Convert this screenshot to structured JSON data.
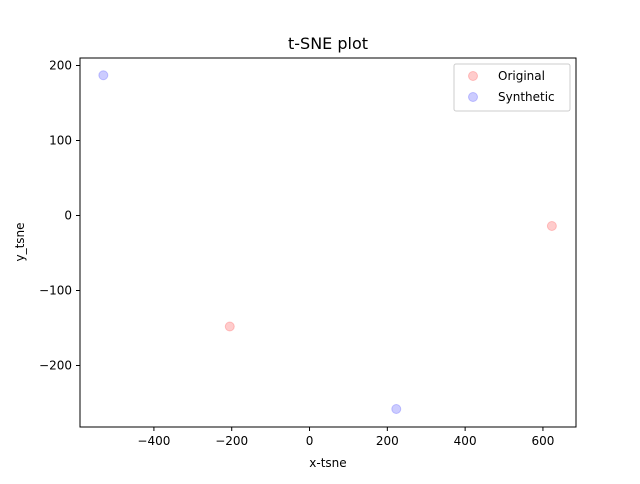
{
  "chart_data": {
    "type": "scatter",
    "title": "t-SNE plot",
    "xlabel": "x-tsne",
    "ylabel": "y_tsne",
    "xlim": [
      -590,
      685
    ],
    "ylim": [
      -282,
      210
    ],
    "xticks": [
      -400,
      -200,
      0,
      200,
      400,
      600
    ],
    "yticks": [
      -200,
      -100,
      0,
      100,
      200
    ],
    "xtick_labels": [
      "−400",
      "−200",
      "0",
      "200",
      "400",
      "600"
    ],
    "ytick_labels": [
      "−200",
      "−100",
      "0",
      "100",
      "200"
    ],
    "grid": false,
    "legend_position": "top-right",
    "series": [
      {
        "name": "Original",
        "color": "#ff0000",
        "alpha": 0.2,
        "points": [
          {
            "x": -205,
            "y": -148
          },
          {
            "x": 623,
            "y": -14
          }
        ]
      },
      {
        "name": "Synthetic",
        "color": "#0000ff",
        "alpha": 0.2,
        "points": [
          {
            "x": -530,
            "y": 187
          },
          {
            "x": 223,
            "y": -258
          }
        ]
      }
    ]
  }
}
